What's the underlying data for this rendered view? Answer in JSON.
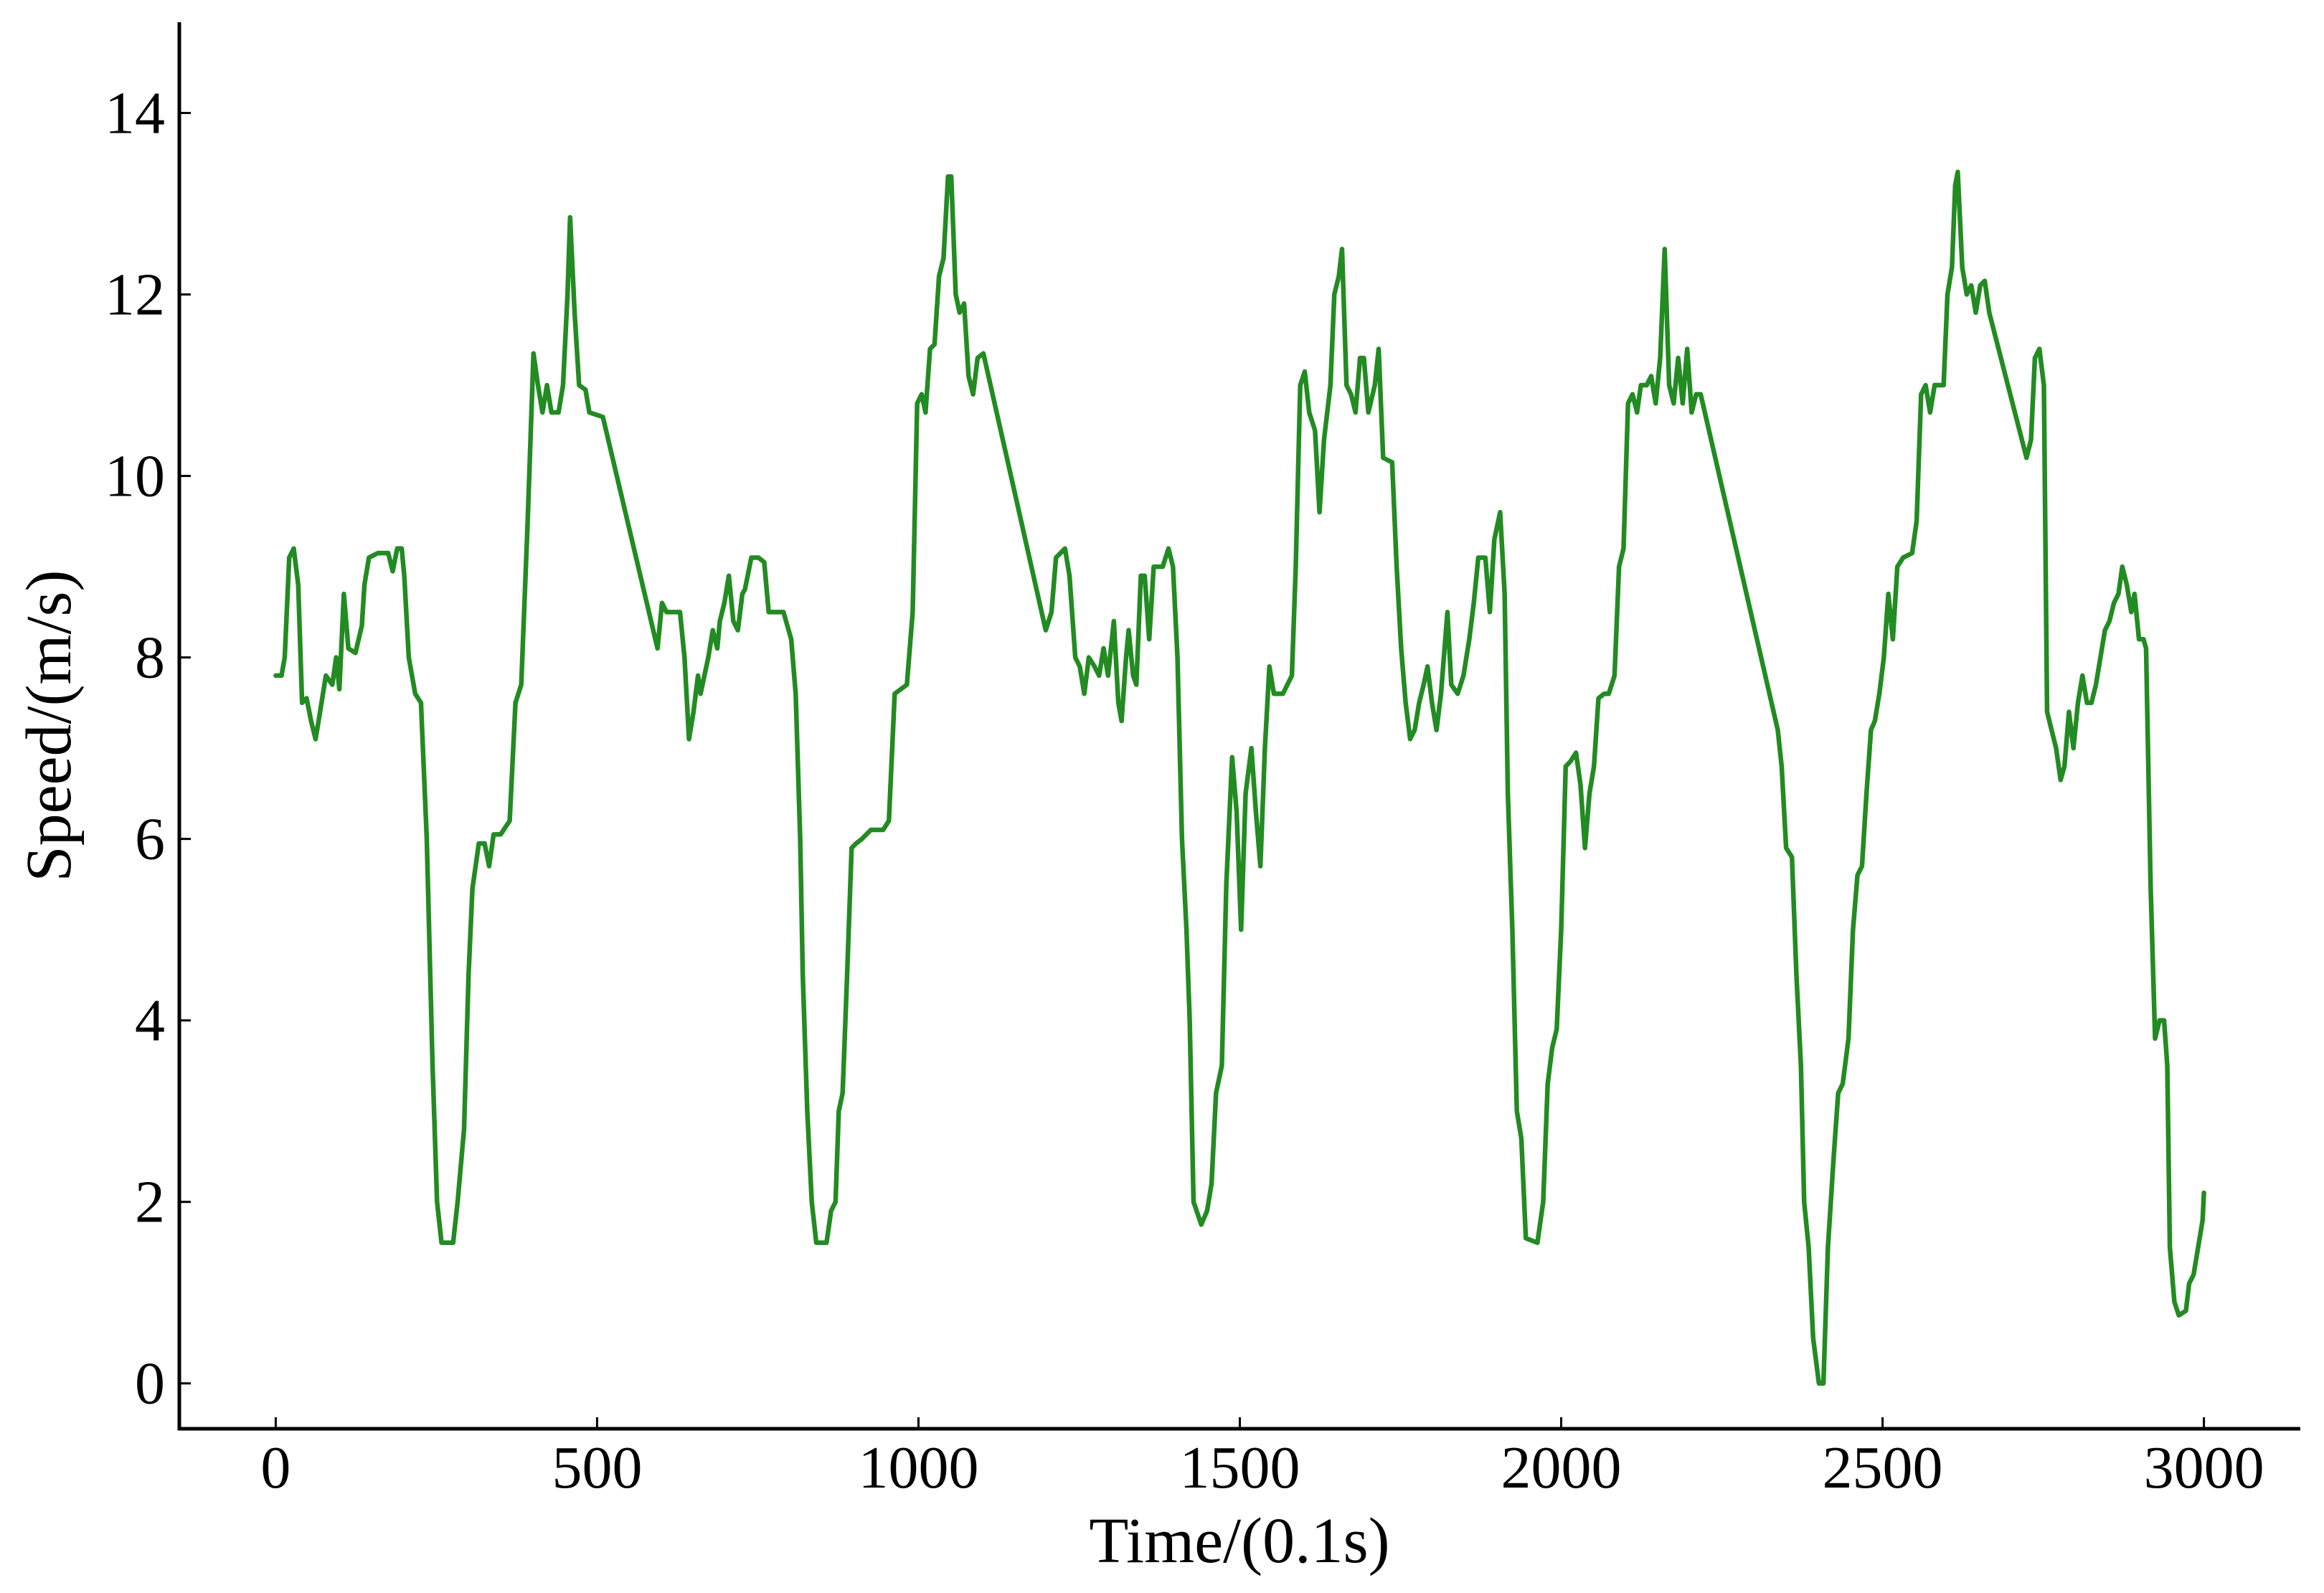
{
  "chart_data": {
    "type": "line",
    "xlabel": "Time/(0.1s)",
    "ylabel": "Speed/(m/s)",
    "color": "#228b22",
    "xlim": [
      -150,
      3150
    ],
    "ylim": [
      -0.5,
      15
    ],
    "xticks": [
      0,
      500,
      1000,
      1500,
      2000,
      2500,
      3000
    ],
    "yticks": [
      0,
      2,
      4,
      6,
      8,
      10,
      12,
      14
    ],
    "x": [
      0,
      9,
      14,
      21,
      28,
      35,
      41,
      48,
      55,
      62,
      69,
      78,
      88,
      94,
      99,
      106,
      113,
      124,
      134,
      138,
      145,
      159,
      175,
      182,
      189,
      196,
      200,
      207,
      217,
      226,
      235,
      244,
      251,
      258,
      276,
      283,
      293,
      300,
      306,
      316,
      325,
      332,
      339,
      350,
      364,
      373,
      382,
      392,
      401,
      408,
      415,
      422,
      429,
      440,
      447,
      454,
      458,
      465,
      472,
      482,
      488,
      509,
      594,
      601,
      608,
      620,
      629,
      636,
      643,
      650,
      657,
      661,
      673,
      680,
      687,
      691,
      698,
      705,
      712,
      719,
      726,
      730,
      740,
      751,
      760,
      767,
      774,
      790,
      802,
      809,
      816,
      820,
      827,
      834,
      841,
      857,
      864,
      871,
      876,
      882,
      889,
      896,
      903,
      912,
      926,
      945,
      954,
      963,
      982,
      991,
      998,
      1005,
      1011,
      1018,
      1025,
      1032,
      1039,
      1046,
      1051,
      1058,
      1064,
      1071,
      1078,
      1085,
      1092,
      1101,
      1198,
      1207,
      1214,
      1228,
      1235,
      1244,
      1251,
      1258,
      1265,
      1274,
      1281,
      1288,
      1295,
      1304,
      1311,
      1316,
      1323,
      1327,
      1334,
      1339,
      1346,
      1352,
      1359,
      1366,
      1380,
      1389,
      1396,
      1403,
      1410,
      1417,
      1422,
      1428,
      1440,
      1449,
      1456,
      1463,
      1472,
      1479,
      1488,
      1495,
      1502,
      1509,
      1518,
      1525,
      1532,
      1539,
      1546,
      1553,
      1567,
      1581,
      1587,
      1594,
      1601,
      1608,
      1617,
      1624,
      1631,
      1641,
      1647,
      1654,
      1659,
      1666,
      1673,
      1680,
      1687,
      1693,
      1700,
      1710,
      1716,
      1723,
      1737,
      1744,
      1751,
      1758,
      1765,
      1772,
      1779,
      1786,
      1792,
      1799,
      1806,
      1813,
      1823,
      1829,
      1839,
      1848,
      1857,
      1864,
      1871,
      1882,
      1889,
      1896,
      1905,
      1912,
      1917,
      1924,
      1931,
      1938,
      1945,
      1963,
      1972,
      1979,
      1986,
      1993,
      2000,
      2007,
      2014,
      2023,
      2030,
      2037,
      2044,
      2051,
      2058,
      2067,
      2074,
      2083,
      2090,
      2097,
      2104,
      2111,
      2118,
      2124,
      2133,
      2140,
      2147,
      2154,
      2161,
      2168,
      2175,
      2182,
      2189,
      2196,
      2203,
      2210,
      2217,
      2337,
      2343,
      2350,
      2359,
      2366,
      2373,
      2378,
      2385,
      2392,
      2401,
      2408,
      2415,
      2424,
      2431,
      2438,
      2447,
      2454,
      2461,
      2468,
      2475,
      2482,
      2488,
      2495,
      2502,
      2509,
      2516,
      2523,
      2532,
      2546,
      2553,
      2560,
      2567,
      2574,
      2581,
      2588,
      2595,
      2601,
      2608,
      2613,
      2617,
      2624,
      2631,
      2638,
      2645,
      2652,
      2659,
      2666,
      2724,
      2731,
      2737,
      2744,
      2751,
      2756,
      2763,
      2770,
      2777,
      2783,
      2790,
      2797,
      2804,
      2811,
      2818,
      2825,
      2832,
      2839,
      2846,
      2853,
      2860,
      2867,
      2873,
      2880,
      2887,
      2892,
      2899,
      2906,
      2910,
      2917,
      2924,
      2931,
      2938,
      2943,
      2947,
      2954,
      2961,
      2972,
      2977,
      2984,
      2991,
      2998,
      3000
    ],
    "values": [
      7.8,
      7.8,
      8.0,
      9.1,
      9.2,
      8.8,
      7.5,
      7.55,
      7.3,
      7.1,
      7.4,
      7.8,
      7.7,
      8.0,
      7.65,
      8.7,
      8.1,
      8.05,
      8.35,
      8.8,
      9.1,
      9.15,
      9.15,
      8.95,
      9.2,
      9.2,
      8.9,
      8.0,
      7.6,
      7.5,
      6.0,
      3.5,
      2.0,
      1.55,
      1.55,
      2.0,
      2.8,
      4.5,
      5.45,
      5.95,
      5.95,
      5.7,
      6.05,
      6.05,
      6.2,
      7.5,
      7.7,
      9.5,
      11.35,
      11.0,
      10.7,
      11.0,
      10.7,
      10.7,
      11.0,
      12.0,
      12.85,
      11.8,
      11.0,
      10.95,
      10.7,
      10.65,
      8.1,
      8.6,
      8.5,
      8.5,
      8.5,
      8.0,
      7.1,
      7.4,
      7.8,
      7.6,
      8.0,
      8.3,
      8.1,
      8.4,
      8.6,
      8.9,
      8.4,
      8.3,
      8.7,
      8.75,
      9.1,
      9.1,
      9.05,
      8.5,
      8.5,
      8.5,
      8.2,
      7.6,
      6.0,
      4.5,
      3.0,
      2.0,
      1.55,
      1.55,
      1.9,
      2.0,
      3.0,
      3.2,
      4.5,
      5.9,
      5.95,
      6.0,
      6.1,
      6.1,
      6.2,
      7.6,
      7.7,
      8.5,
      10.8,
      10.9,
      10.7,
      11.4,
      11.45,
      12.2,
      12.4,
      13.3,
      13.3,
      12.0,
      11.8,
      11.9,
      11.1,
      10.9,
      11.3,
      11.35,
      8.3,
      8.5,
      9.1,
      9.2,
      8.9,
      8.0,
      7.9,
      7.6,
      8.0,
      7.9,
      7.8,
      8.1,
      7.8,
      8.4,
      7.5,
      7.3,
      8.0,
      8.3,
      7.8,
      7.7,
      8.9,
      8.9,
      8.2,
      9.0,
      9.0,
      9.2,
      9.0,
      8.0,
      6.0,
      5.0,
      4.0,
      2.0,
      1.75,
      1.9,
      2.2,
      3.2,
      3.5,
      5.5,
      6.9,
      6.3,
      5.0,
      6.5,
      7.0,
      6.3,
      5.7,
      7.0,
      7.9,
      7.6,
      7.6,
      7.8,
      9.0,
      11.0,
      11.15,
      10.7,
      10.5,
      9.6,
      10.4,
      11.0,
      12.0,
      12.2,
      12.5,
      11.0,
      10.9,
      10.7,
      11.3,
      11.3,
      10.7,
      11.0,
      11.4,
      10.2,
      10.15,
      9.0,
      8.1,
      7.5,
      7.1,
      7.2,
      7.5,
      7.7,
      7.9,
      7.5,
      7.2,
      7.6,
      8.5,
      7.7,
      7.6,
      7.8,
      8.2,
      8.6,
      9.1,
      9.1,
      8.5,
      9.3,
      9.6,
      8.7,
      6.5,
      5.0,
      3.0,
      2.7,
      1.6,
      1.55,
      2.0,
      3.3,
      3.7,
      3.9,
      5.0,
      6.8,
      6.85,
      6.95,
      6.6,
      5.9,
      6.5,
      6.8,
      7.55,
      7.6,
      7.6,
      7.8,
      9.0,
      9.2,
      10.8,
      10.9,
      10.7,
      11.0,
      11.0,
      11.1,
      10.8,
      11.3,
      12.5,
      11.0,
      10.8,
      11.3,
      10.8,
      11.4,
      10.7,
      10.9,
      10.9,
      7.2,
      6.8,
      5.9,
      5.8,
      4.5,
      3.5,
      2.0,
      1.5,
      0.5,
      0.0,
      0.0,
      1.5,
      2.5,
      3.2,
      3.3,
      3.8,
      5.0,
      5.6,
      5.7,
      6.5,
      7.2,
      7.3,
      7.6,
      8.0,
      8.7,
      8.2,
      9.0,
      9.1,
      9.15,
      9.5,
      10.9,
      11.0,
      10.7,
      11.0,
      11.0,
      11.0,
      12.0,
      12.3,
      13.2,
      13.35,
      12.3,
      12.0,
      12.1,
      11.8,
      12.1,
      12.15,
      11.8,
      10.2,
      10.4,
      11.3,
      11.4,
      11.0,
      7.4,
      7.2,
      7.0,
      6.65,
      6.8,
      7.4,
      7.0,
      7.5,
      7.8,
      7.5,
      7.5,
      7.7,
      8.0,
      8.3,
      8.4,
      8.6,
      8.7,
      9.0,
      8.8,
      8.5,
      8.7,
      8.2,
      8.2,
      8.1,
      5.5,
      3.8,
      4.0,
      4.0,
      3.5,
      1.5,
      0.9,
      0.75,
      0.8,
      1.1,
      1.2,
      1.5,
      1.8,
      2.1
    ]
  }
}
